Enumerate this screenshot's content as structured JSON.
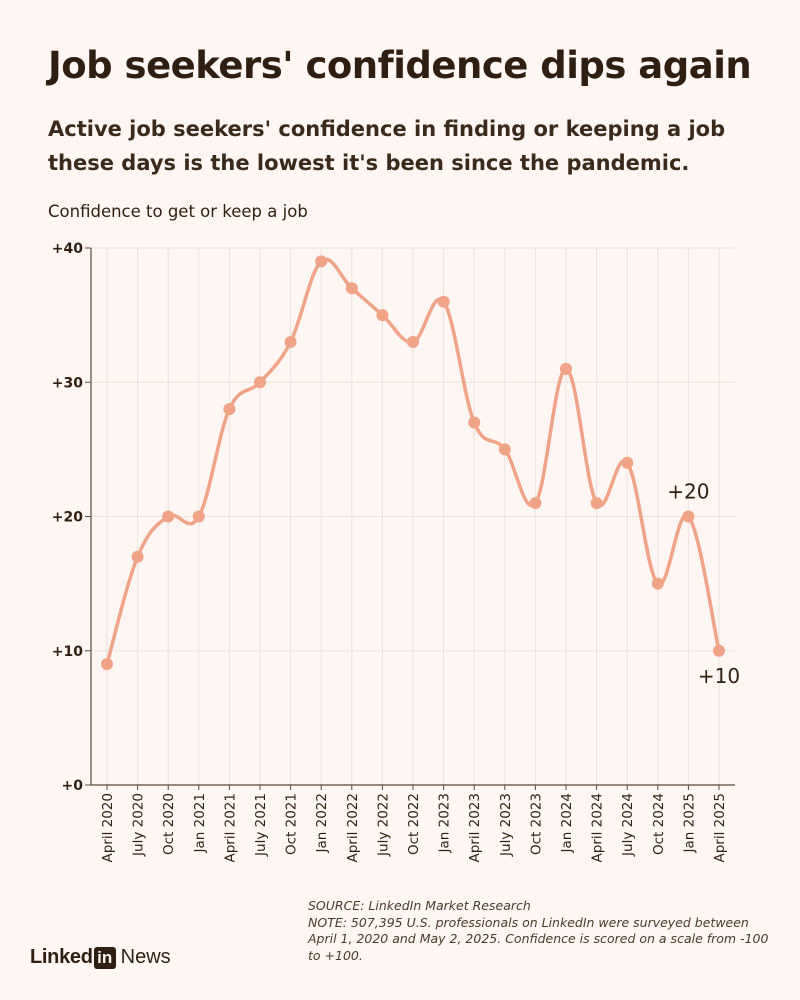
{
  "header": {
    "title": "Job seekers' confidence dips again",
    "subtitle": "Active job seekers' confidence in finding or keeping a job these days is the lowest it's been since the pandemic."
  },
  "chart_data": {
    "type": "line",
    "title": "Job seekers' confidence dips again",
    "ylabel": "Confidence to get or keep a job",
    "xlabel": "",
    "categories": [
      "April 2020",
      "July 2020",
      "Oct 2020",
      "Jan 2021",
      "April 2021",
      "July 2021",
      "Oct 2021",
      "Jan 2022",
      "April 2022",
      "July 2022",
      "Oct 2022",
      "Jan 2023",
      "April 2023",
      "July 2023",
      "Oct 2023",
      "Jan 2024",
      "April 2024",
      "July 2024",
      "Oct 2024",
      "Jan 2025",
      "April 2025"
    ],
    "series": [
      {
        "name": "Confidence",
        "values": [
          9,
          17,
          20,
          20,
          28,
          30,
          33,
          39,
          37,
          35,
          33,
          36,
          27,
          25,
          21,
          31,
          21,
          24,
          15,
          20,
          10
        ]
      }
    ],
    "ylim": [
      0,
      40
    ],
    "yticks": [
      0,
      10,
      20,
      30,
      40
    ],
    "ytick_labels": [
      "+0",
      "+10",
      "+20",
      "+30",
      "+40"
    ],
    "annotations": [
      {
        "category": "Jan 2025",
        "text": "+20",
        "placement": "above"
      },
      {
        "category": "April 2025",
        "text": "+10",
        "placement": "below"
      }
    ],
    "grid": true,
    "line_color": "#f0a387"
  },
  "footnote": {
    "source": "SOURCE: LinkedIn Market Research",
    "note": "NOTE: 507,395 U.S. professionals on LinkedIn were surveyed between April 1, 2020 and May 2, 2025. Confidence is scored on a scale from -100 to +100."
  },
  "brand": {
    "word": "Linked",
    "badge": "in",
    "news": "News"
  }
}
